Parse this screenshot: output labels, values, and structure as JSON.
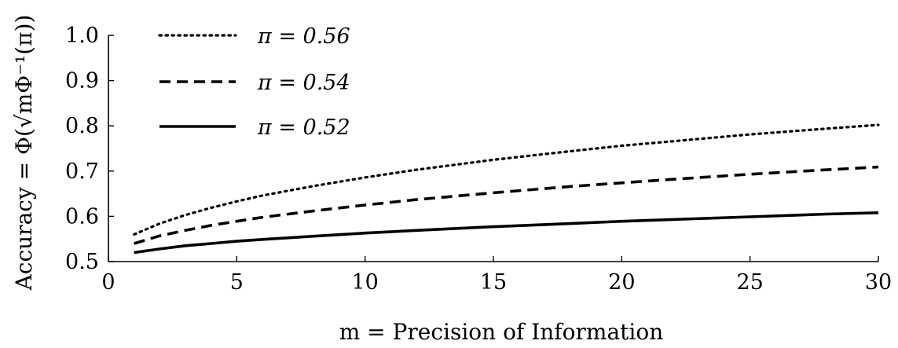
{
  "chart_data": {
    "type": "line",
    "xlabel": "m = Precision of Information",
    "ylabel": "Accuracy = Φ(√mΦ⁻¹(π))",
    "xlim": [
      0,
      30
    ],
    "ylim": [
      0.5,
      1.0
    ],
    "x_ticks": [
      "0",
      "5",
      "10",
      "15",
      "20",
      "25",
      "30"
    ],
    "y_ticks": [
      "0.5",
      "0.6",
      "0.7",
      "0.8",
      "0.9",
      "1.0"
    ],
    "x": [
      1,
      2,
      3,
      4,
      5,
      6,
      8,
      10,
      12,
      15,
      18,
      20,
      22,
      25,
      28,
      30
    ],
    "legend_position": "top-left",
    "grid": false,
    "series": [
      {
        "name": "π = 0.56",
        "style": "dotted",
        "values": [
          0.56,
          0.584,
          0.603,
          0.619,
          0.633,
          0.646,
          0.667,
          0.686,
          0.703,
          0.725,
          0.744,
          0.756,
          0.766,
          0.781,
          0.794,
          0.802
        ]
      },
      {
        "name": "π = 0.54",
        "style": "dashed",
        "values": [
          0.54,
          0.557,
          0.569,
          0.58,
          0.589,
          0.598,
          0.612,
          0.625,
          0.637,
          0.652,
          0.666,
          0.674,
          0.682,
          0.693,
          0.703,
          0.709
        ]
      },
      {
        "name": "π = 0.52",
        "style": "solid",
        "values": [
          0.52,
          0.528,
          0.535,
          0.54,
          0.545,
          0.549,
          0.556,
          0.563,
          0.569,
          0.577,
          0.584,
          0.589,
          0.593,
          0.599,
          0.605,
          0.608
        ]
      }
    ]
  }
}
